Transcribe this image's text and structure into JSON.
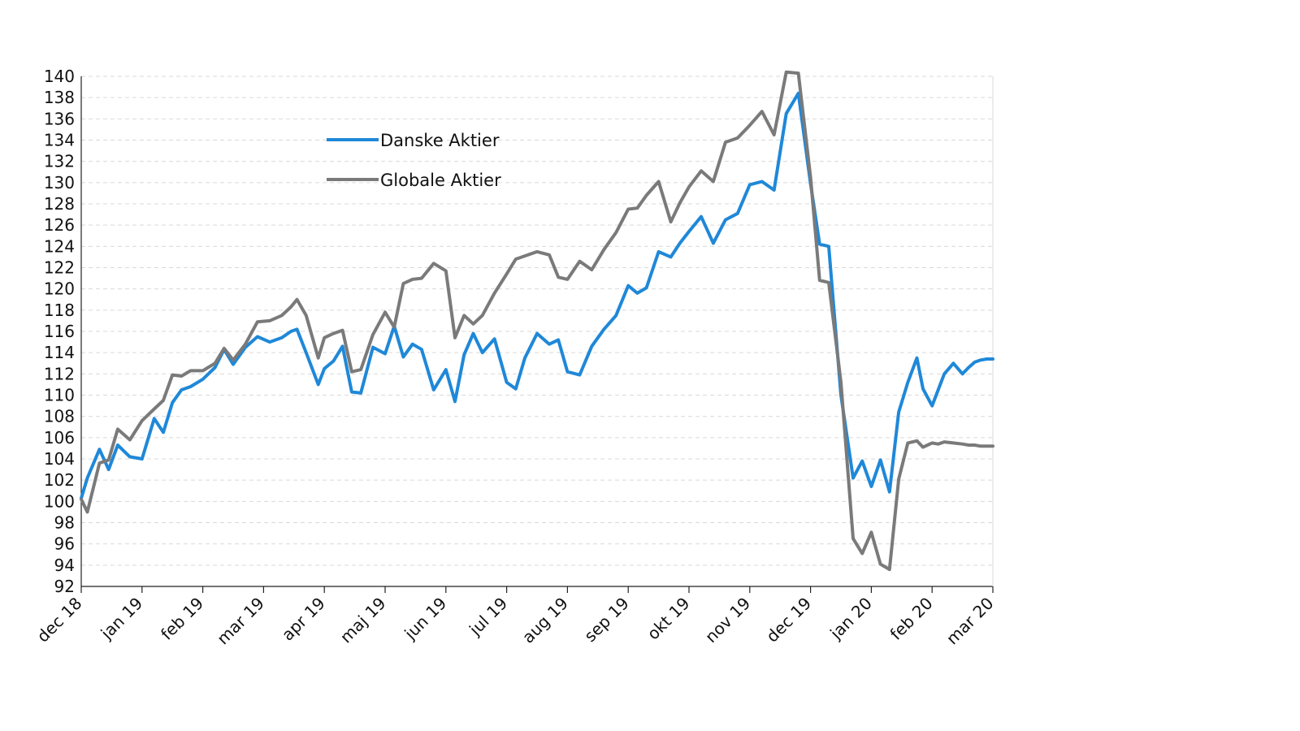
{
  "chart_data": {
    "type": "line",
    "title": "",
    "xlabel": "",
    "ylabel": "",
    "ylim": [
      92,
      140
    ],
    "yticks": [
      92,
      94,
      96,
      98,
      100,
      102,
      104,
      106,
      108,
      110,
      112,
      114,
      116,
      118,
      120,
      122,
      124,
      126,
      128,
      130,
      132,
      134,
      136,
      138,
      140
    ],
    "xlim": [
      0,
      15
    ],
    "categories": [
      "dec 18",
      "jan 19",
      "feb 19",
      "mar 19",
      "apr 19",
      "maj 19",
      "jun 19",
      "jul 19",
      "aug 19",
      "sep 19",
      "okt 19",
      "nov 19",
      "dec 19",
      "jan 20",
      "feb 20",
      "mar 20"
    ],
    "grid": true,
    "legend_position": "upper-left",
    "series": [
      {
        "name": "Danske Aktier",
        "color": "#1f88d8",
        "x": [
          0,
          0.1,
          0.3,
          0.45,
          0.6,
          0.8,
          1.0,
          1.2,
          1.35,
          1.5,
          1.65,
          1.8,
          2.0,
          2.2,
          2.35,
          2.5,
          2.7,
          2.9,
          3.1,
          3.3,
          3.45,
          3.55,
          3.7,
          3.9,
          4.0,
          4.15,
          4.3,
          4.45,
          4.6,
          4.8,
          5.0,
          5.15,
          5.3,
          5.45,
          5.6,
          5.8,
          6.0,
          6.15,
          6.3,
          6.45,
          6.6,
          6.8,
          7.0,
          7.15,
          7.3,
          7.5,
          7.7,
          7.85,
          8.0,
          8.2,
          8.4,
          8.6,
          8.8,
          9.0,
          9.15,
          9.3,
          9.5,
          9.7,
          9.85,
          10.0,
          10.2,
          10.4,
          10.6,
          10.8,
          11.0,
          11.2,
          11.4,
          11.6,
          11.8,
          12.0,
          12.15,
          12.3,
          12.5,
          12.7,
          12.85,
          13.0,
          13.15,
          13.3,
          13.45,
          13.6,
          13.75,
          13.85,
          14.0,
          14.1,
          14.2,
          14.35,
          14.5,
          14.6,
          14.7,
          14.8,
          14.9,
          15.0
        ],
        "values": [
          100.3,
          102.2,
          104.9,
          103.0,
          105.3,
          104.2,
          104.0,
          107.8,
          106.5,
          109.3,
          110.5,
          110.8,
          111.5,
          112.6,
          114.3,
          112.9,
          114.5,
          115.5,
          115.0,
          115.4,
          116.0,
          116.2,
          114.0,
          111.0,
          112.5,
          113.2,
          114.6,
          110.3,
          110.2,
          114.5,
          113.9,
          116.5,
          113.6,
          114.8,
          114.3,
          110.5,
          112.4,
          109.4,
          113.8,
          115.8,
          114.0,
          115.3,
          111.2,
          110.6,
          113.5,
          115.8,
          114.8,
          115.2,
          112.2,
          111.9,
          114.6,
          116.2,
          117.5,
          120.3,
          119.6,
          120.1,
          123.5,
          123.0,
          124.3,
          125.4,
          126.8,
          124.3,
          126.5,
          127.1,
          129.8,
          130.1,
          129.3,
          136.5,
          138.4,
          129.9,
          124.2,
          124.0,
          110.0,
          102.2,
          103.8,
          101.4,
          103.9,
          100.9,
          108.4,
          111.2,
          113.5,
          110.6,
          109.0,
          110.5,
          112.0,
          113.0,
          112.0,
          112.6,
          113.1,
          113.3,
          113.4,
          113.4
        ]
      },
      {
        "name": "Globale Aktier",
        "color": "#7a7a7a",
        "x": [
          0,
          0.1,
          0.3,
          0.45,
          0.6,
          0.8,
          1.0,
          1.2,
          1.35,
          1.5,
          1.65,
          1.8,
          2.0,
          2.2,
          2.35,
          2.5,
          2.7,
          2.9,
          3.1,
          3.3,
          3.45,
          3.55,
          3.7,
          3.9,
          4.0,
          4.15,
          4.3,
          4.45,
          4.6,
          4.8,
          5.0,
          5.15,
          5.3,
          5.45,
          5.6,
          5.8,
          6.0,
          6.15,
          6.3,
          6.45,
          6.6,
          6.8,
          7.0,
          7.15,
          7.3,
          7.5,
          7.7,
          7.85,
          8.0,
          8.2,
          8.4,
          8.6,
          8.8,
          9.0,
          9.15,
          9.3,
          9.5,
          9.7,
          9.85,
          10.0,
          10.2,
          10.4,
          10.6,
          10.8,
          11.0,
          11.2,
          11.4,
          11.6,
          11.8,
          12.0,
          12.15,
          12.3,
          12.5,
          12.7,
          12.85,
          13.0,
          13.15,
          13.3,
          13.45,
          13.6,
          13.75,
          13.85,
          14.0,
          14.1,
          14.2,
          14.35,
          14.5,
          14.6,
          14.7,
          14.8,
          14.9,
          15.0
        ],
        "values": [
          100.2,
          99.0,
          103.6,
          103.9,
          106.8,
          105.8,
          107.6,
          108.7,
          109.5,
          111.9,
          111.8,
          112.3,
          112.3,
          113.0,
          114.4,
          113.3,
          114.8,
          116.9,
          117.0,
          117.5,
          118.3,
          119.0,
          117.5,
          113.5,
          115.4,
          115.8,
          116.1,
          112.2,
          112.4,
          115.7,
          117.8,
          116.4,
          120.5,
          120.9,
          121.0,
          122.4,
          121.7,
          115.4,
          117.5,
          116.7,
          117.5,
          119.6,
          121.4,
          122.8,
          123.1,
          123.5,
          123.2,
          121.1,
          120.9,
          122.6,
          121.8,
          123.7,
          125.3,
          127.5,
          127.6,
          128.8,
          130.1,
          126.3,
          128.1,
          129.6,
          131.1,
          130.1,
          133.8,
          134.2,
          135.4,
          136.7,
          134.5,
          140.4,
          140.3,
          130.5,
          120.8,
          120.6,
          111.2,
          96.5,
          95.1,
          97.1,
          94.1,
          93.6,
          102.1,
          105.5,
          105.7,
          105.1,
          105.5,
          105.4,
          105.6,
          105.5,
          105.4,
          105.3,
          105.3,
          105.2,
          105.2,
          105.2
        ]
      }
    ]
  }
}
